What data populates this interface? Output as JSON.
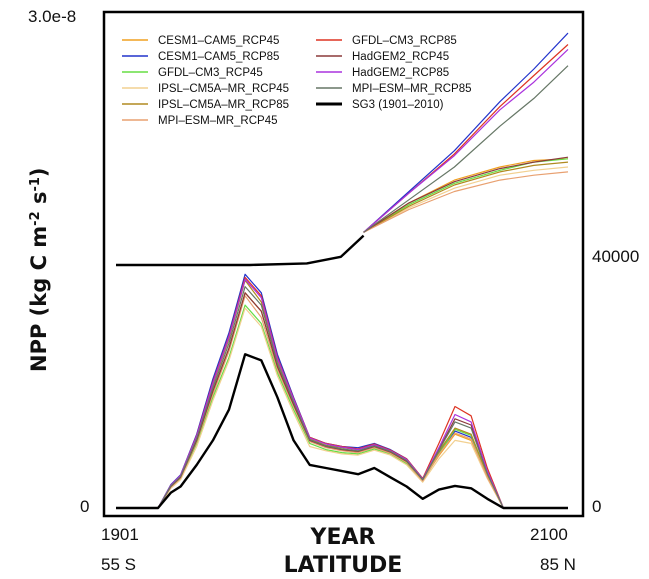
{
  "chart_data": [
    {
      "type": "line",
      "panel": "time series (top)",
      "title": "",
      "xlabel": "YEAR",
      "ylabel": "NPP (kg C m-2 s-1)",
      "ylabel_parts": {
        "a": "NPP (kg C m",
        "b": "-2",
        "c": " s",
        "d": "-1",
        "e": ")"
      },
      "xlim": [
        1901,
        2100
      ],
      "ylim": [
        0,
        3e-08
      ],
      "x_ticks": [
        "1901",
        "2100"
      ],
      "y_ticks": [
        "0",
        "3.0e-8"
      ],
      "series": [
        {
          "name": "SG3 (1901–2010)",
          "color": "#000000",
          "x": [
            1901,
            1930,
            1960,
            1985,
            2000,
            2010
          ],
          "values": [
            1.5e-08,
            1.5e-08,
            1.5e-08,
            1.51e-08,
            1.55e-08,
            1.68e-08
          ]
        },
        {
          "name": "CESM1–CAM5_RCP45",
          "color": "#f0a020",
          "x": [
            2010,
            2030,
            2050,
            2070,
            2085,
            2100
          ],
          "values": [
            1.7e-08,
            1.88e-08,
            2.02e-08,
            2.1e-08,
            2.14e-08,
            2.15e-08
          ]
        },
        {
          "name": "CESM1–CAM5_RCP85",
          "color": "#2233cc",
          "x": [
            2010,
            2030,
            2050,
            2070,
            2085,
            2100
          ],
          "values": [
            1.7e-08,
            1.95e-08,
            2.2e-08,
            2.5e-08,
            2.7e-08,
            2.92e-08
          ]
        },
        {
          "name": "GFDL–CM3_RCP45",
          "color": "#66dd44",
          "x": [
            2010,
            2030,
            2050,
            2070,
            2085,
            2100
          ],
          "values": [
            1.7e-08,
            1.87e-08,
            2e-08,
            2.08e-08,
            2.13e-08,
            2.15e-08
          ]
        },
        {
          "name": "IPSL–CM5A–MR_RCP45",
          "color": "#f2d090",
          "x": [
            2010,
            2030,
            2050,
            2070,
            2085,
            2100
          ],
          "values": [
            1.7e-08,
            1.85e-08,
            1.97e-08,
            2.05e-08,
            2.08e-08,
            2.1e-08
          ]
        },
        {
          "name": "IPSL–CM5A–MR_RCP85",
          "color": "#b08a20",
          "x": [
            2010,
            2030,
            2050,
            2070,
            2085,
            2100
          ],
          "values": [
            1.7e-08,
            1.86e-08,
            1.99e-08,
            2.07e-08,
            2.11e-08,
            2.13e-08
          ]
        },
        {
          "name": "MPI–ESM–MR_RCP45",
          "color": "#e8a070",
          "x": [
            2010,
            2030,
            2050,
            2070,
            2085,
            2100
          ],
          "values": [
            1.7e-08,
            1.84e-08,
            1.95e-08,
            2.02e-08,
            2.05e-08,
            2.07e-08
          ]
        },
        {
          "name": "GFDL–CM3_RCP85",
          "color": "#dd3322",
          "x": [
            2010,
            2030,
            2050,
            2070,
            2085,
            2100
          ],
          "values": [
            1.7e-08,
            1.94e-08,
            2.18e-08,
            2.47e-08,
            2.66e-08,
            2.85e-08
          ]
        },
        {
          "name": "HadGEM2_RCP45",
          "color": "#8b3a3a",
          "x": [
            2010,
            2030,
            2050,
            2070,
            2085,
            2100
          ],
          "values": [
            1.7e-08,
            1.88e-08,
            2.01e-08,
            2.09e-08,
            2.13e-08,
            2.16e-08
          ]
        },
        {
          "name": "HadGEM2_RCP85",
          "color": "#aa33dd",
          "x": [
            2010,
            2030,
            2050,
            2070,
            2085,
            2100
          ],
          "values": [
            1.7e-08,
            1.94e-08,
            2.17e-08,
            2.45e-08,
            2.62e-08,
            2.82e-08
          ]
        },
        {
          "name": "MPI–ESM–MR_RCP85",
          "color": "#667766",
          "x": [
            2010,
            2030,
            2050,
            2070,
            2085,
            2100
          ],
          "values": [
            1.7e-08,
            1.9e-08,
            2.1e-08,
            2.35e-08,
            2.52e-08,
            2.72e-08
          ]
        }
      ]
    },
    {
      "type": "line",
      "panel": "latitudinal profile (bottom)",
      "title": "",
      "xlabel": "LATITUDE",
      "ylabel": "",
      "xlim": [
        -55,
        85
      ],
      "ylim": [
        0,
        40000
      ],
      "x_ticks": [
        "55 S",
        "85 N"
      ],
      "y_ticks": [
        "0",
        "40000"
      ],
      "x": [
        -55,
        -50,
        -42,
        -38,
        -35,
        -30,
        -25,
        -20,
        -15,
        -10,
        -5,
        0,
        5,
        10,
        15,
        20,
        25,
        30,
        35,
        40,
        45,
        50,
        55,
        60,
        65,
        70,
        75,
        80,
        85
      ],
      "series": [
        {
          "name": "SG3 (1901–2010)",
          "color": "#000000",
          "values": [
            0,
            0,
            0,
            2500,
            3500,
            7000,
            11000,
            16000,
            25000,
            24000,
            18000,
            11000,
            7000,
            6500,
            6000,
            5500,
            6500,
            5000,
            3500,
            1500,
            3000,
            3600,
            3200,
            1500,
            0,
            0,
            0,
            0,
            0
          ]
        },
        {
          "name": "CESM1–CAM5_RCP45",
          "color": "#f0a020",
          "values": [
            0,
            0,
            0,
            3500,
            5000,
            11000,
            19000,
            26000,
            35000,
            32000,
            23000,
            17000,
            11000,
            10000,
            9500,
            9000,
            10000,
            9000,
            7500,
            4500,
            8500,
            12000,
            11000,
            5000,
            0,
            0,
            0,
            0,
            0
          ]
        },
        {
          "name": "CESM1–CAM5_RCP85",
          "color": "#2233cc",
          "values": [
            0,
            0,
            0,
            3800,
            5400,
            12000,
            21000,
            28500,
            38000,
            35000,
            25000,
            18000,
            11500,
            10500,
            10000,
            9800,
            10500,
            9500,
            8000,
            4800,
            9000,
            12500,
            11500,
            5200,
            0,
            0,
            0,
            0,
            0
          ]
        },
        {
          "name": "GFDL–CM3_RCP45",
          "color": "#66dd44",
          "values": [
            0,
            0,
            0,
            3300,
            4800,
            10500,
            18000,
            24500,
            33000,
            30000,
            22000,
            16000,
            10500,
            9500,
            9000,
            8800,
            9600,
            8800,
            7200,
            4300,
            8800,
            12800,
            11800,
            5200,
            0,
            0,
            0,
            0,
            0
          ]
        },
        {
          "name": "IPSL–CM5A–MR_RCP45",
          "color": "#f2d090",
          "values": [
            0,
            0,
            0,
            3200,
            4600,
            10000,
            17500,
            24000,
            32500,
            29500,
            21500,
            15500,
            10000,
            9300,
            8800,
            8600,
            9400,
            8600,
            7000,
            4200,
            8000,
            11000,
            10500,
            4800,
            0,
            0,
            0,
            0,
            0
          ]
        },
        {
          "name": "IPSL–CM5A–MR_RCP85",
          "color": "#b08a20",
          "values": [
            0,
            0,
            0,
            3600,
            5200,
            11500,
            20000,
            27500,
            37000,
            33500,
            24000,
            17500,
            11200,
            10200,
            9800,
            9500,
            10200,
            9200,
            7800,
            4600,
            9200,
            13000,
            12000,
            5400,
            0,
            0,
            0,
            0,
            0
          ]
        },
        {
          "name": "MPI–ESM–MR_RCP45",
          "color": "#e8a070",
          "values": [
            0,
            0,
            0,
            3400,
            4900,
            10800,
            18500,
            25500,
            34500,
            31000,
            22500,
            16500,
            10800,
            9800,
            9300,
            9000,
            9800,
            8900,
            7400,
            4400,
            8700,
            12200,
            11200,
            5000,
            0,
            0,
            0,
            0,
            0
          ]
        },
        {
          "name": "GFDL–CM3_RCP85",
          "color": "#dd3322",
          "values": [
            0,
            0,
            0,
            3700,
            5300,
            11800,
            20500,
            28000,
            37500,
            34500,
            24500,
            17800,
            11500,
            10500,
            10000,
            9600,
            10400,
            9400,
            8000,
            4800,
            10500,
            16500,
            15000,
            6500,
            0,
            0,
            0,
            0,
            0
          ]
        },
        {
          "name": "HadGEM2_RCP45",
          "color": "#8b3a3a",
          "values": [
            0,
            0,
            0,
            3500,
            5000,
            11000,
            19000,
            26000,
            35000,
            32000,
            23000,
            16800,
            11000,
            10000,
            9500,
            9200,
            10000,
            9100,
            7600,
            4600,
            9500,
            14500,
            13500,
            5800,
            0,
            0,
            0,
            0,
            0
          ]
        },
        {
          "name": "HadGEM2_RCP85",
          "color": "#aa33dd",
          "values": [
            0,
            0,
            0,
            3700,
            5300,
            11700,
            20300,
            27800,
            37200,
            34200,
            24300,
            17700,
            11400,
            10400,
            9900,
            9500,
            10300,
            9300,
            7900,
            4700,
            9800,
            15200,
            14000,
            6000,
            0,
            0,
            0,
            0,
            0
          ]
        },
        {
          "name": "MPI–ESM–MR_RCP85",
          "color": "#667766",
          "values": [
            0,
            0,
            0,
            3600,
            5100,
            11300,
            19500,
            26800,
            36000,
            33000,
            23500,
            17200,
            11100,
            10100,
            9600,
            9300,
            10100,
            9200,
            7700,
            4600,
            9400,
            14000,
            13000,
            5600,
            0,
            0,
            0,
            0,
            0
          ]
        }
      ]
    }
  ],
  "legend": {
    "items": [
      {
        "label": "CESM1–CAM5_RCP45",
        "color": "#f0a020"
      },
      {
        "label": "CESM1–CAM5_RCP85",
        "color": "#2233cc"
      },
      {
        "label": "GFDL–CM3_RCP45",
        "color": "#66dd44"
      },
      {
        "label": "IPSL–CM5A–MR_RCP45",
        "color": "#f2d090"
      },
      {
        "label": "IPSL–CM5A–MR_RCP85",
        "color": "#b08a20"
      },
      {
        "label": "MPI–ESM–MR_RCP45",
        "color": "#e8a070"
      },
      {
        "label": "GFDL–CM3_RCP85",
        "color": "#dd3322"
      },
      {
        "label": "HadGEM2_RCP45",
        "color": "#8b3a3a"
      },
      {
        "label": "HadGEM2_RCP85",
        "color": "#aa33dd"
      },
      {
        "label": "MPI–ESM–MR_RCP85",
        "color": "#667766"
      },
      {
        "label": "SG3 (1901–2010)",
        "color": "#000000"
      }
    ]
  }
}
